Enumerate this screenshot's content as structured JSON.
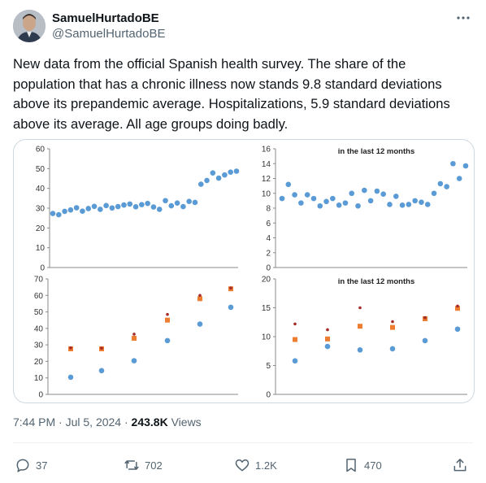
{
  "author": {
    "display_name": "SamuelHurtadoBE",
    "handle": "@SamuelHurtadoBE"
  },
  "icons": {
    "more": "more-horizontal-icon",
    "reply": "reply-icon",
    "retweet": "retweet-icon",
    "like": "heart-icon",
    "bookmark": "bookmark-icon",
    "share": "share-icon"
  },
  "tweet": {
    "text": "New data from the official Spanish health survey. The share of the population that has a chronic illness now stands 9.8 standard deviations above its prepandemic average. Hospitalizations, 5.9 standard deviations above its average. All age groups doing badly.",
    "time": "7:44 PM",
    "date": "Jul 5, 2024",
    "separator": "·",
    "views_count": "243.8K",
    "views_label": "Views"
  },
  "actions": {
    "replies": "37",
    "retweets": "702",
    "likes": "1.2K",
    "bookmarks": "470"
  },
  "colors": {
    "blue_series": "#5b9bd5",
    "orange_series": "#ed7d31",
    "red_series": "#a52a2a"
  },
  "chart_data": [
    {
      "type": "scatter",
      "title": "",
      "ylim": [
        0,
        60
      ],
      "yticks": [
        "0",
        "10",
        "20",
        "30",
        "40",
        "50",
        "60"
      ],
      "series": [
        {
          "values": [
            27.3,
            26.7,
            28.4,
            29.1,
            30.2,
            28.5,
            29.8,
            30.9,
            29.4,
            31.3,
            30.1,
            30.8,
            31.6,
            32.1,
            30.7,
            31.8,
            32.4,
            30.6,
            29.4,
            33.8,
            31.2,
            32.6,
            30.8,
            33.4,
            32.9,
            42.1,
            44.0,
            47.8,
            45.2,
            46.8,
            48.2,
            48.7
          ]
        }
      ]
    },
    {
      "type": "scatter",
      "title": "in the last 12 months",
      "ylim": [
        0,
        16
      ],
      "yticks": [
        "0",
        "2",
        "4",
        "6",
        "8",
        "10",
        "12",
        "14",
        "16"
      ],
      "series": [
        {
          "values": [
            9.3,
            11.2,
            9.8,
            8.7,
            9.8,
            9.3,
            8.3,
            8.9,
            9.3,
            8.4,
            8.7,
            10.0,
            8.3,
            10.4,
            9.0,
            10.3,
            9.9,
            8.5,
            9.6,
            8.4,
            8.5,
            9.0,
            8.8,
            8.5,
            10.0,
            11.3,
            10.9,
            14.0,
            12.0,
            13.7
          ]
        }
      ]
    },
    {
      "type": "scatter",
      "title": "",
      "categories": [
        "",
        "",
        "",
        "",
        "",
        ""
      ],
      "ylim": [
        0,
        70
      ],
      "yticks": [
        "0",
        "10",
        "20",
        "30",
        "40",
        "50",
        "60",
        "70"
      ],
      "series": [
        {
          "color": "blue",
          "values": [
            10.4,
            14.4,
            20.4,
            32.6,
            42.6,
            52.8
          ]
        },
        {
          "color": "orange",
          "values": [
            27.6,
            27.6,
            34.0,
            45.0,
            58.0,
            64.0
          ]
        },
        {
          "color": "red",
          "values": [
            28.2,
            28.0,
            36.5,
            48.5,
            60.0,
            64.5
          ]
        }
      ]
    },
    {
      "type": "scatter",
      "title": "in the last 12 months",
      "categories": [
        "",
        "",
        "",
        "",
        "",
        ""
      ],
      "ylim": [
        0,
        20
      ],
      "yticks": [
        "0",
        "5",
        "10",
        "15",
        "20"
      ],
      "series": [
        {
          "color": "blue",
          "values": [
            5.8,
            8.3,
            7.7,
            7.9,
            9.3,
            11.3
          ]
        },
        {
          "color": "orange",
          "values": [
            9.5,
            9.6,
            11.8,
            11.6,
            13.1,
            14.9
          ]
        },
        {
          "color": "red",
          "values": [
            12.2,
            11.2,
            15.0,
            12.6,
            13.3,
            15.3
          ]
        }
      ]
    }
  ]
}
